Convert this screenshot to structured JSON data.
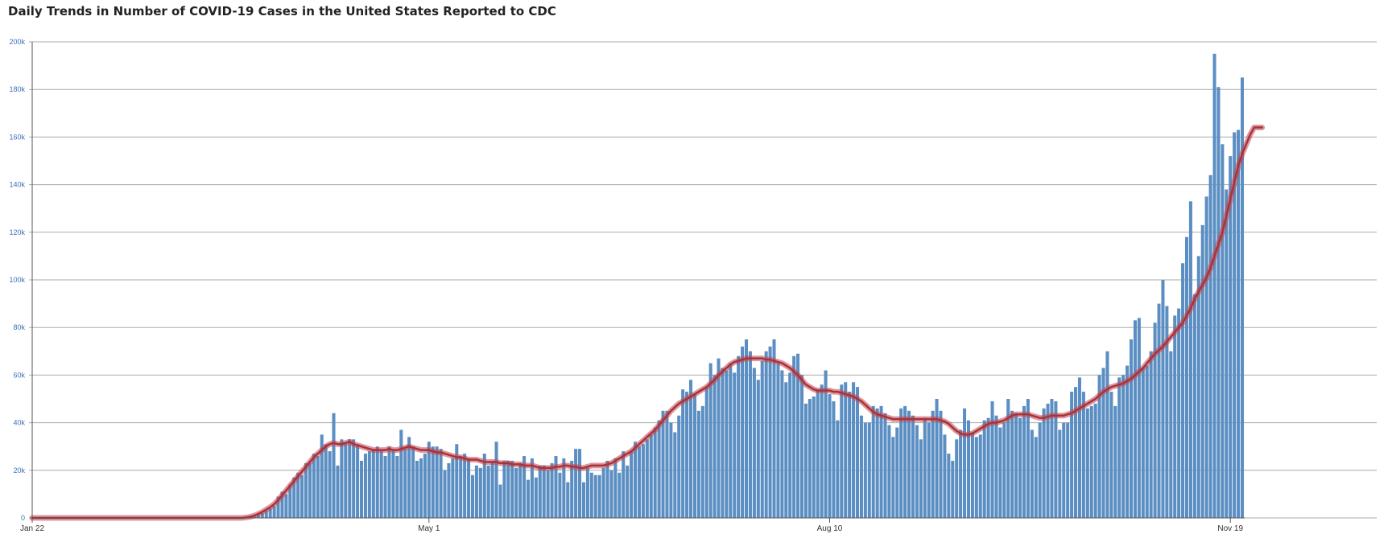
{
  "chart_data": {
    "type": "bar",
    "title": "Daily Trends in Number of COVID-19 Cases in the United States Reported to CDC",
    "xlabel": "",
    "ylabel": "",
    "x_start": "Jan 22",
    "x_end": "Nov 19",
    "x_ticks": [
      {
        "label": "Jan 22",
        "index": 0
      },
      {
        "label": "May 1",
        "index": 100
      },
      {
        "label": "Aug 10",
        "index": 201
      },
      {
        "label": "Nov 19",
        "index": 302
      }
    ],
    "y_ticks": [
      "0",
      "20k",
      "40k",
      "60k",
      "80k",
      "100k",
      "120k",
      "140k",
      "160k",
      "180k",
      "200k"
    ],
    "ylim": [
      0,
      200000
    ],
    "grid": true,
    "colors": {
      "bars": "#5b8ec2",
      "bar_edge": "#4a7db3",
      "moving_average": "#c5454f",
      "axis": "#555555",
      "grid": "#aaaaaa",
      "tick_text": "#3b73b9"
    },
    "series": [
      {
        "kind": "bar",
        "values": [
          0,
          0,
          0,
          0,
          0,
          0,
          0,
          0,
          0,
          0,
          0,
          0,
          0,
          0,
          0,
          0,
          0,
          0,
          0,
          0,
          0,
          0,
          0,
          0,
          0,
          0,
          0,
          0,
          0,
          0,
          0,
          0,
          0,
          0,
          0,
          0,
          0,
          0,
          0,
          0,
          0,
          0,
          0,
          0,
          0,
          0,
          0,
          0,
          0,
          0,
          0,
          0,
          0,
          50,
          100,
          300,
          700,
          1200,
          2000,
          3000,
          4000,
          5000,
          9000,
          11000,
          10000,
          14000,
          17000,
          19000,
          18000,
          23000,
          23000,
          27000,
          26000,
          35000,
          31000,
          28000,
          44000,
          22000,
          33000,
          31000,
          33000,
          33000,
          31000,
          24000,
          27000,
          28000,
          29000,
          30000,
          28000,
          26000,
          30000,
          28000,
          26000,
          37000,
          29000,
          34000,
          30000,
          24000,
          25000,
          27000,
          32000,
          30000,
          30000,
          29000,
          20000,
          23000,
          25000,
          31000,
          26000,
          27000,
          25000,
          18000,
          22000,
          21000,
          27000,
          22000,
          24000,
          32000,
          14000,
          24000,
          24000,
          24000,
          21000,
          23000,
          26000,
          16000,
          25000,
          17000,
          22000,
          22000,
          20000,
          23000,
          26000,
          19000,
          25000,
          15000,
          24000,
          29000,
          29000,
          15000,
          21000,
          19000,
          18000,
          18000,
          21000,
          24000,
          20000,
          25000,
          19000,
          28000,
          22000,
          28000,
          32000,
          30000,
          31000,
          33000,
          35000,
          38000,
          41000,
          45000,
          45000,
          40000,
          36000,
          43000,
          54000,
          53000,
          58000,
          52000,
          45000,
          47000,
          55000,
          65000,
          60000,
          67000,
          63000,
          62000,
          65000,
          61000,
          68000,
          72000,
          75000,
          70000,
          63000,
          58000,
          66000,
          70000,
          72000,
          75000,
          65000,
          62000,
          57000,
          61000,
          68000,
          69000,
          60000,
          48000,
          50000,
          51000,
          54000,
          56000,
          62000,
          52000,
          49000,
          41000,
          56000,
          57000,
          53000,
          57000,
          55000,
          43000,
          40000,
          40000,
          47000,
          46000,
          47000,
          44000,
          39000,
          34000,
          38000,
          46000,
          47000,
          45000,
          43000,
          39000,
          33000,
          42000,
          40000,
          45000,
          50000,
          45000,
          35000,
          27000,
          24000,
          33000,
          37000,
          46000,
          41000,
          36000,
          34000,
          35000,
          41000,
          42000,
          49000,
          43000,
          38000,
          40000,
          50000,
          45000,
          44000,
          42000,
          47000,
          50000,
          37000,
          34000,
          40000,
          46000,
          48000,
          50000,
          49000,
          37000,
          40000,
          40000,
          53000,
          55000,
          59000,
          53000,
          46000,
          47000,
          48000,
          60000,
          63000,
          70000,
          53000,
          47000,
          59000,
          60000,
          64000,
          75000,
          83000,
          84000,
          63000,
          64000,
          70000,
          82000,
          90000,
          100000,
          89000,
          70000,
          85000,
          88000,
          107000,
          118000,
          133000,
          94000,
          110000,
          123000,
          135000,
          144000,
          195000,
          181000,
          157000,
          138000,
          152000,
          162000,
          163000,
          185000
        ]
      },
      {
        "kind": "line",
        "name": "",
        "values": [
          0,
          0,
          0,
          0,
          0,
          0,
          0,
          0,
          0,
          0,
          0,
          0,
          0,
          0,
          0,
          0,
          0,
          0,
          0,
          0,
          0,
          0,
          0,
          0,
          0,
          0,
          0,
          0,
          0,
          0,
          0,
          0,
          0,
          0,
          0,
          0,
          0,
          0,
          0,
          0,
          0,
          0,
          0,
          0,
          0,
          0,
          0,
          0,
          0,
          0,
          0,
          0,
          0,
          50,
          200,
          500,
          1000,
          1700,
          2500,
          3500,
          4500,
          5800,
          7500,
          9500,
          11500,
          13500,
          15500,
          17500,
          19500,
          21500,
          23500,
          25500,
          27000,
          28500,
          30000,
          31000,
          31500,
          31000,
          31000,
          31500,
          32000,
          31000,
          30500,
          30000,
          29500,
          29000,
          28500,
          28500,
          28500,
          28500,
          29000,
          28500,
          28500,
          29000,
          29500,
          30000,
          29500,
          29000,
          28500,
          28500,
          28500,
          28000,
          27500,
          27500,
          27000,
          26500,
          26000,
          25500,
          25500,
          25000,
          24500,
          24500,
          24500,
          24000,
          23500,
          23500,
          23500,
          23500,
          23000,
          23000,
          23000,
          22500,
          22500,
          22500,
          22000,
          22000,
          22000,
          21500,
          21000,
          21000,
          21000,
          21000,
          21500,
          21500,
          22000,
          22000,
          21500,
          21500,
          21000,
          21000,
          21500,
          22000,
          22000,
          22000,
          22000,
          22500,
          23000,
          24000,
          25000,
          26000,
          27000,
          28000,
          29500,
          31000,
          32500,
          34000,
          35500,
          37000,
          39000,
          41000,
          43000,
          45000,
          46500,
          48000,
          49000,
          50000,
          51000,
          52000,
          53000,
          54000,
          55000,
          56500,
          58000,
          60000,
          61500,
          63000,
          64500,
          65500,
          66000,
          66500,
          67000,
          67000,
          67000,
          67000,
          67000,
          66500,
          66500,
          66000,
          65500,
          65000,
          64000,
          63000,
          61500,
          60000,
          58000,
          56000,
          55000,
          54000,
          53500,
          53500,
          53500,
          53500,
          53000,
          53000,
          52500,
          52000,
          51500,
          51000,
          50000,
          49000,
          47500,
          46000,
          44500,
          43500,
          43000,
          42500,
          42000,
          41500,
          41500,
          41500,
          41500,
          41500,
          41500,
          41500,
          41500,
          41500,
          41500,
          41500,
          41500,
          41000,
          40500,
          39500,
          38000,
          36500,
          35500,
          35000,
          35000,
          35500,
          36500,
          37500,
          38500,
          39500,
          40000,
          40000,
          40500,
          41000,
          42000,
          43000,
          43500,
          43500,
          43500,
          43500,
          43000,
          42500,
          42000,
          42000,
          42500,
          43000,
          43000,
          43000,
          43000,
          43500,
          44000,
          45000,
          46000,
          47000,
          48000,
          49000,
          50000,
          51500,
          53000,
          54000,
          55000,
          55500,
          56000,
          56500,
          57500,
          58500,
          60000,
          61500,
          63000,
          65000,
          67000,
          69000,
          70500,
          72000,
          74000,
          76000,
          78000,
          80000,
          82000,
          85000,
          88000,
          92000,
          95000,
          98000,
          101000,
          105000,
          110000,
          115000,
          120000,
          127000,
          134000,
          141000,
          148000,
          153000,
          157000,
          161000,
          164000,
          164000,
          164000
        ]
      }
    ]
  }
}
